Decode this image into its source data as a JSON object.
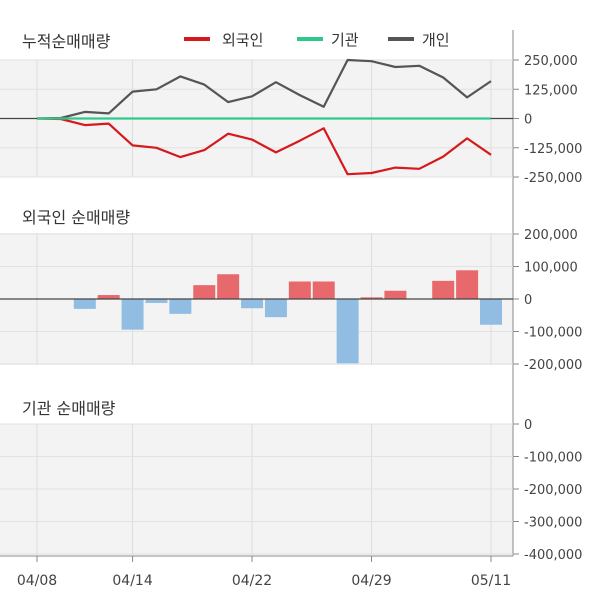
{
  "colors": {
    "foreign": "#d6191c",
    "institution": "#2ec98a",
    "individual": "#555555",
    "bar_up": "#e8696c",
    "bar_down": "#92bde2",
    "panel_bg": "#f3f3f3"
  },
  "x_labels": [
    "04/08",
    "04/14",
    "04/22",
    "04/29",
    "05/11"
  ],
  "chart_data": [
    {
      "type": "line",
      "title": "누적순매매량",
      "legend": [
        "외국인",
        "기관",
        "개인"
      ],
      "legend_position": "top",
      "yticks": [
        "250,000",
        "125,000",
        "0",
        "-125,000",
        "-250,000"
      ],
      "ylim": [
        -250000,
        250000
      ],
      "series": [
        {
          "name": "외국인",
          "values": [
            0,
            -2000,
            -28000,
            -22000,
            -115000,
            -125000,
            -165000,
            -135000,
            -65000,
            -90000,
            -145000,
            -95000,
            -42000,
            -238000,
            -233000,
            -210000,
            -215000,
            -163000,
            -85000,
            -155000
          ]
        },
        {
          "name": "기관",
          "values": [
            0,
            0,
            0,
            0,
            0,
            0,
            0,
            0,
            0,
            0,
            0,
            0,
            0,
            0,
            0,
            0,
            0,
            0,
            0,
            0
          ]
        },
        {
          "name": "개인",
          "values": [
            0,
            2000,
            28000,
            22000,
            115000,
            125000,
            180000,
            145000,
            70000,
            95000,
            155000,
            100000,
            50000,
            250000,
            245000,
            220000,
            225000,
            175000,
            90000,
            160000
          ]
        }
      ]
    },
    {
      "type": "bar",
      "title": "외국인 순매매량",
      "yticks": [
        "200,000",
        "100,000",
        "0",
        "-100,000",
        "-200,000"
      ],
      "ylim": [
        -200000,
        200000
      ],
      "values": [
        0,
        0,
        -30000,
        12000,
        -93000,
        -12000,
        -45000,
        42000,
        75000,
        -28000,
        -55000,
        53000,
        53000,
        -195000,
        5000,
        25000,
        0,
        55000,
        87000,
        -78000
      ]
    },
    {
      "type": "bar",
      "title": "기관 순매매량",
      "yticks": [
        "0",
        "-100,000",
        "-200,000",
        "-300,000",
        "-400,000"
      ],
      "ylim": [
        -400000,
        0
      ],
      "values": [
        0,
        0,
        0,
        0,
        0,
        0,
        0,
        0,
        0,
        0,
        0,
        0,
        0,
        0,
        0,
        0,
        0,
        0,
        0,
        0
      ]
    }
  ]
}
